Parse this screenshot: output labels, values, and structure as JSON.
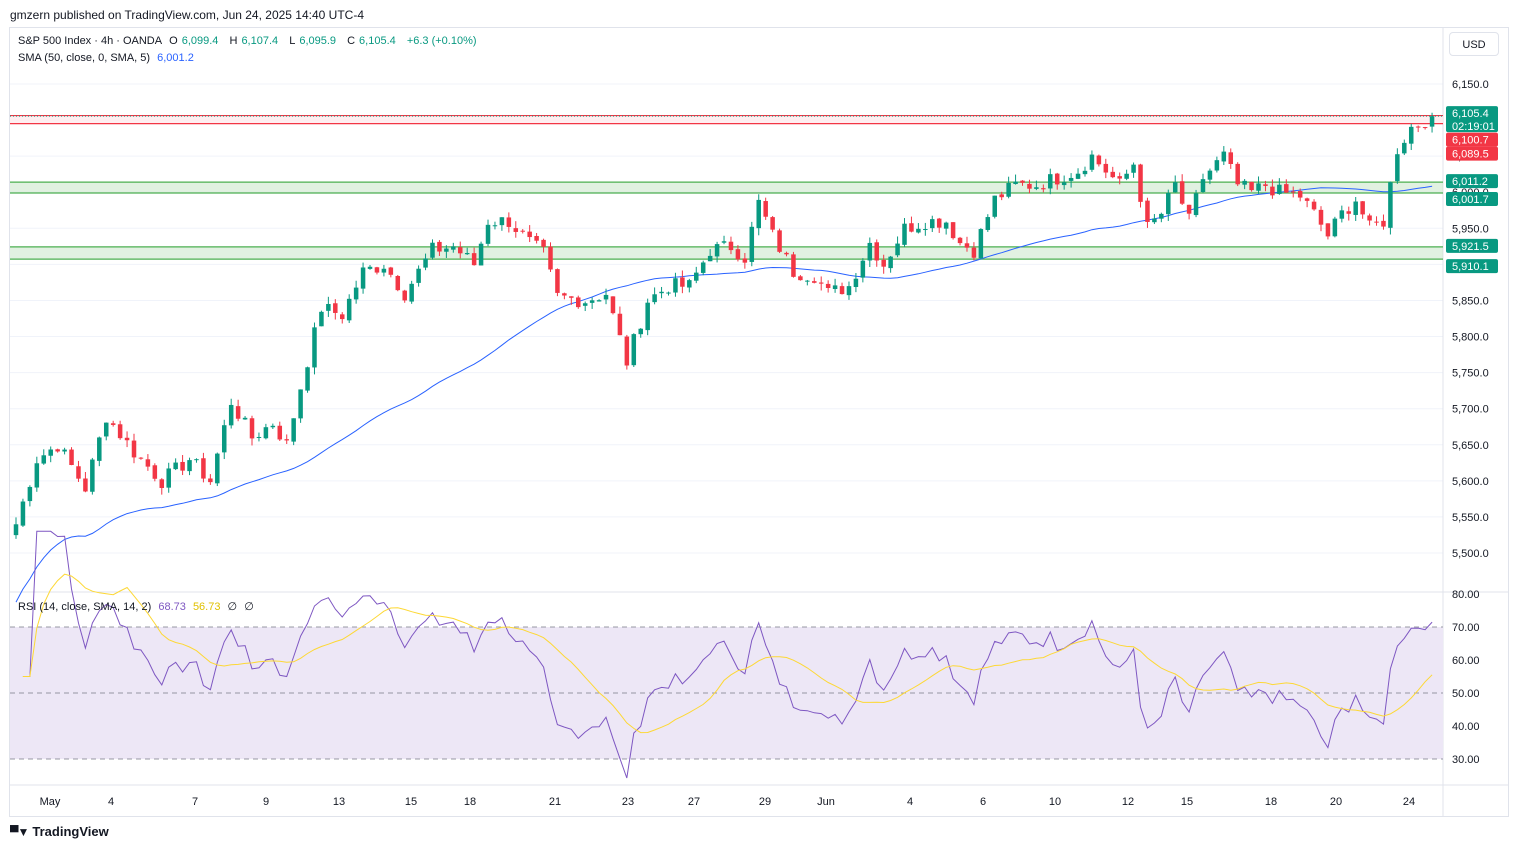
{
  "header": {
    "publisher_line": "gmzern published on TradingView.com, Jun 24, 2025 14:40 UTC-4"
  },
  "legend": {
    "symbol": "S&P 500 Index · 4h · OANDA",
    "open_label": "O",
    "open": "6,099.4",
    "high_label": "H",
    "high": "6,107.4",
    "low_label": "L",
    "low": "6,095.9",
    "close_label": "C",
    "close": "6,105.4",
    "change": "+6.3 (+0.10%)",
    "sma_label": "SMA (50, close, 0, SMA, 5)",
    "sma_value": "6,001.2",
    "rsi_label": "RSI (14, close, SMA, 14, 2)",
    "rsi_value": "68.73",
    "rsi_ma_value": "56.73",
    "rsi_extra_1": "∅",
    "rsi_extra_2": "∅"
  },
  "currency_button": "USD",
  "footer": {
    "brand": "TradingView",
    "logo_icon": "tradingview-logo-icon"
  },
  "colors": {
    "up": "#089981",
    "down": "#f23645",
    "sma": "#2962ff",
    "rsi": "#7e57c2",
    "rsi_ma": "#fdd835",
    "rsi_band": "#ede7f6",
    "support_zone": "#c8e6c9",
    "support_line": "#4caf50",
    "resistance_line": "#f23645",
    "grid": "#f0f3fa"
  },
  "chart_data": [
    {
      "type": "candlestick",
      "title": "S&P 500 Index · 4h · OANDA",
      "ylim": [
        5450,
        6200
      ],
      "y_ticks": [
        "6,150.0",
        "6,100.0",
        "6,050.0",
        "6,000.0",
        "5,950.0",
        "5,900.0",
        "5,850.0",
        "5,800.0",
        "5,750.0",
        "5,700.0",
        "5,650.0",
        "5,600.0",
        "5,550.0",
        "5,500.0"
      ],
      "x_ticks": [
        "May",
        "4",
        "7",
        "9",
        "13",
        "15",
        "18",
        "21",
        "23",
        "27",
        "29",
        "Jun",
        "4",
        "6",
        "10",
        "12",
        "15",
        "18",
        "20",
        "24"
      ],
      "last_price": {
        "value": "6,105.4",
        "countdown": "02:19:01"
      },
      "resistance_zone": {
        "upper": "6,100.7",
        "lower": "6,089.5"
      },
      "support_zones": [
        {
          "upper": "6,011.2",
          "lower": "6,001.7"
        },
        {
          "upper": "5,921.5",
          "lower": "5,910.1"
        }
      ],
      "anchors": [
        [
          0,
          5540
        ],
        [
          3,
          5630
        ],
        [
          6,
          5650
        ],
        [
          10,
          5590
        ],
        [
          13,
          5690
        ],
        [
          17,
          5640
        ],
        [
          21,
          5600
        ],
        [
          25,
          5630
        ],
        [
          28,
          5600
        ],
        [
          31,
          5710
        ],
        [
          34,
          5660
        ],
        [
          37,
          5680
        ],
        [
          39,
          5650
        ],
        [
          41,
          5730
        ],
        [
          44,
          5840
        ],
        [
          47,
          5830
        ],
        [
          50,
          5890
        ],
        [
          53,
          5900
        ],
        [
          56,
          5860
        ],
        [
          60,
          5920
        ],
        [
          63,
          5925
        ],
        [
          66,
          5900
        ],
        [
          68,
          5960
        ],
        [
          71,
          5960
        ],
        [
          74,
          5930
        ],
        [
          76,
          5915
        ],
        [
          78,
          5855
        ],
        [
          82,
          5850
        ],
        [
          85,
          5860
        ],
        [
          88,
          5765
        ],
        [
          91,
          5850
        ],
        [
          94,
          5870
        ],
        [
          97,
          5870
        ],
        [
          100,
          5920
        ],
        [
          103,
          5925
        ],
        [
          105,
          5910
        ],
        [
          107,
          5985
        ],
        [
          109,
          5940
        ],
        [
          112,
          5890
        ],
        [
          115,
          5885
        ],
        [
          117,
          5860
        ],
        [
          120,
          5870
        ],
        [
          123,
          5930
        ],
        [
          125,
          5900
        ],
        [
          128,
          5950
        ],
        [
          131,
          5960
        ],
        [
          134,
          5960
        ],
        [
          136,
          5930
        ],
        [
          138,
          5920
        ],
        [
          141,
          5990
        ],
        [
          144,
          6010
        ],
        [
          147,
          6010
        ],
        [
          150,
          6020
        ],
        [
          153,
          6030
        ],
        [
          155,
          6050
        ],
        [
          157,
          6030
        ],
        [
          159,
          6010
        ],
        [
          161,
          6040
        ],
        [
          163,
          5950
        ],
        [
          165,
          5970
        ],
        [
          167,
          6010
        ],
        [
          169,
          5960
        ],
        [
          171,
          6020
        ],
        [
          174,
          6050
        ],
        [
          176,
          6010
        ],
        [
          178,
          6000
        ],
        [
          180,
          6010
        ],
        [
          182,
          6000
        ],
        [
          185,
          5995
        ],
        [
          187,
          5970
        ],
        [
          189,
          5940
        ],
        [
          191,
          5970
        ],
        [
          193,
          5990
        ],
        [
          195,
          5950
        ],
        [
          197,
          5960
        ],
        [
          199,
          6060
        ],
        [
          201,
          6090
        ],
        [
          203,
          6100
        ],
        [
          204,
          6105.4
        ]
      ]
    },
    {
      "type": "line",
      "title": "RSI (14, close, SMA, 14, 2)",
      "ylim": [
        25,
        80
      ],
      "y_ticks": [
        "80.00",
        "70.00",
        "60.00",
        "50.00",
        "40.00",
        "30.00"
      ],
      "overbought": 70,
      "oversold": 30
    }
  ]
}
